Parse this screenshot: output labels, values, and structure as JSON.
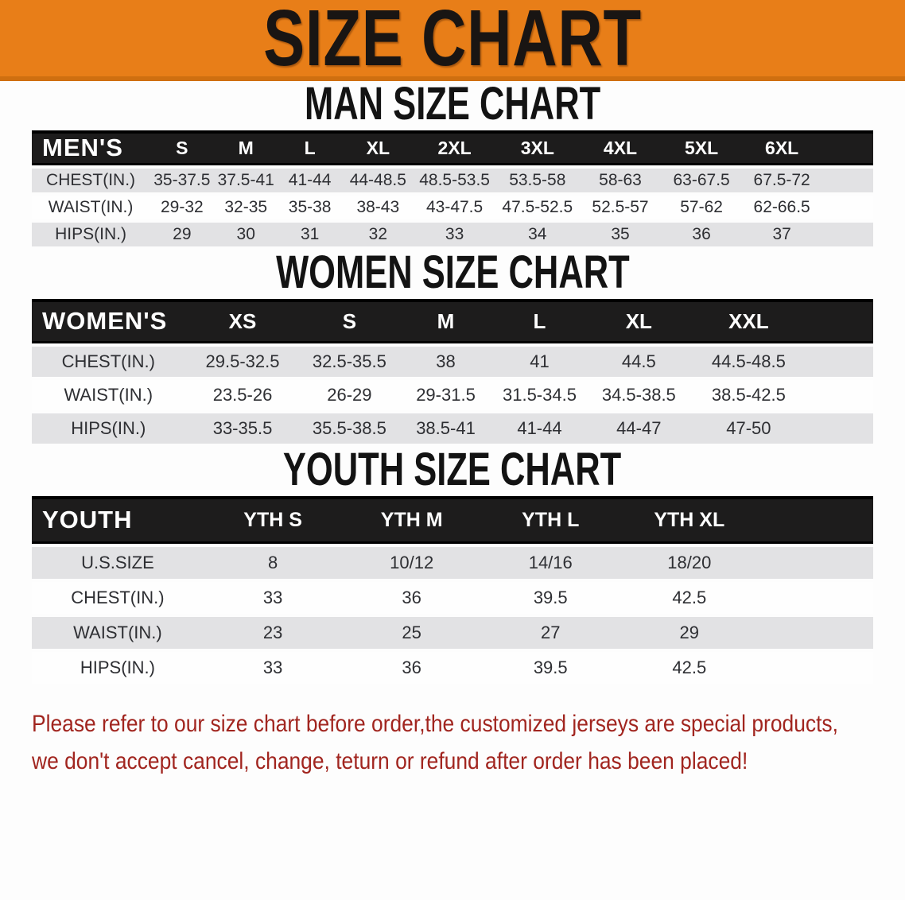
{
  "banner": {
    "title": "SIZE CHART"
  },
  "sections": [
    {
      "key": "men",
      "heading": "MAN SIZE CHART",
      "table": {
        "label": "MEN'S",
        "columns": [
          "S",
          "M",
          "L",
          "XL",
          "2XL",
          "3XL",
          "4XL",
          "5XL",
          "6XL"
        ],
        "rows": [
          {
            "label": "CHEST(IN.)",
            "values": [
              "35-37.5",
              "37.5-41",
              "41-44",
              "44-48.5",
              "48.5-53.5",
              "53.5-58",
              "58-63",
              "63-67.5",
              "67.5-72"
            ]
          },
          {
            "label": "WAIST(IN.)",
            "values": [
              "29-32",
              "32-35",
              "35-38",
              "38-43",
              "43-47.5",
              "47.5-52.5",
              "52.5-57",
              "57-62",
              "62-66.5"
            ]
          },
          {
            "label": "HIPS(IN.)",
            "values": [
              "29",
              "30",
              "31",
              "32",
              "33",
              "34",
              "35",
              "36",
              "37"
            ]
          }
        ]
      }
    },
    {
      "key": "women",
      "heading": "WOMEN SIZE CHART",
      "table": {
        "label": "WOMEN'S",
        "columns": [
          "XS",
          "S",
          "M",
          "L",
          "XL",
          "XXL"
        ],
        "rows": [
          {
            "label": "CHEST(IN.)",
            "values": [
              "29.5-32.5",
              "32.5-35.5",
              "38",
              "41",
              "44.5",
              "44.5-48.5"
            ]
          },
          {
            "label": "WAIST(IN.)",
            "values": [
              "23.5-26",
              "26-29",
              "29-31.5",
              "31.5-34.5",
              "34.5-38.5",
              "38.5-42.5"
            ]
          },
          {
            "label": "HIPS(IN.)",
            "values": [
              "33-35.5",
              "35.5-38.5",
              "38.5-41",
              "41-44",
              "44-47",
              "47-50"
            ]
          }
        ]
      }
    },
    {
      "key": "youth",
      "heading": "YOUTH SIZE CHART",
      "table": {
        "label": "YOUTH",
        "columns": [
          "YTH S",
          "YTH M",
          "YTH L",
          "YTH XL"
        ],
        "rows": [
          {
            "label": "U.S.SIZE",
            "values": [
              "8",
              "10/12",
              "14/16",
              "18/20"
            ]
          },
          {
            "label": "CHEST(IN.)",
            "values": [
              "33",
              "36",
              "39.5",
              "42.5"
            ]
          },
          {
            "label": "WAIST(IN.)",
            "values": [
              "23",
              "25",
              "27",
              "29"
            ]
          },
          {
            "label": "HIPS(IN.)",
            "values": [
              "33",
              "36",
              "39.5",
              "42.5"
            ]
          }
        ]
      }
    }
  ],
  "footer": {
    "line1": "Please refer to our size chart before order,the customized jerseys are special products,",
    "line2": "we don't accept cancel, change, teturn or refund after order has been placed!"
  },
  "colors": {
    "banner_orange": "#e87e18",
    "banner_edge": "#cf6f10",
    "header_black": "#1d1c1c",
    "row_gray": "#e2e2e4",
    "notice_red": "#a1251f"
  }
}
